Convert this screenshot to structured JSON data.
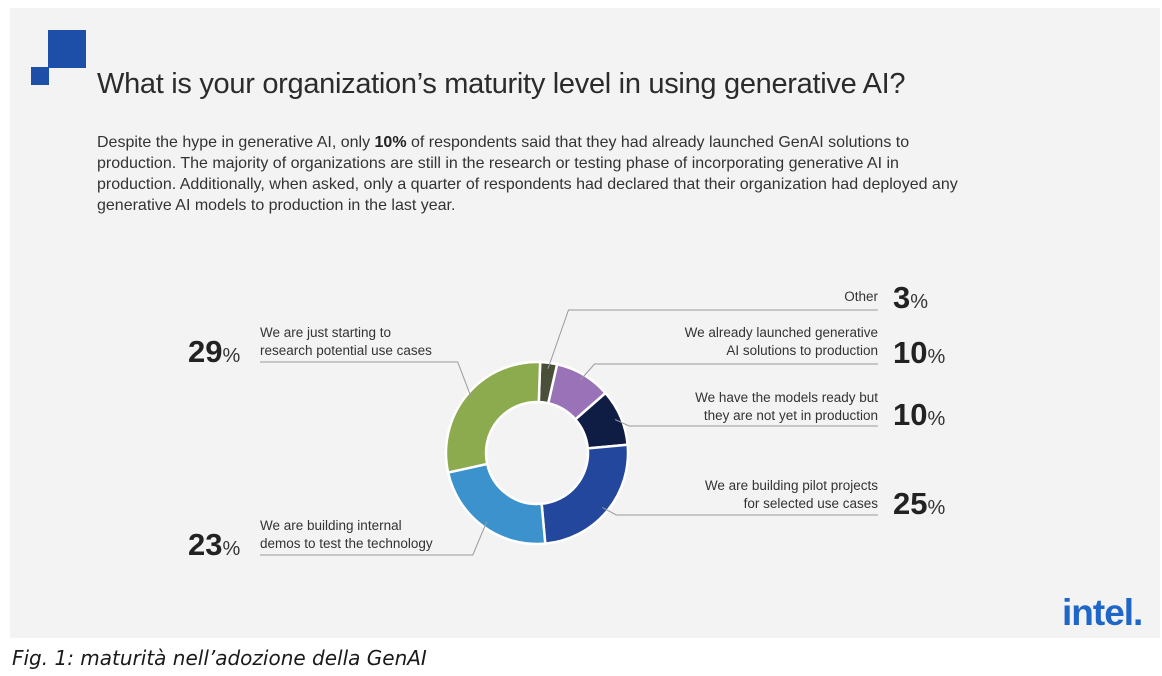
{
  "header": {
    "title": "What is your organization’s maturity level in using generative AI?"
  },
  "intro": {
    "before_bold": "Despite the hype in generative AI, only ",
    "bold": "10%",
    "after_bold": " of respondents said that they had already launched GenAI solutions to production. The majority of organizations are still in the research or testing phase of incorporating generative AI in production. Additionally, when asked, only a quarter of respondents had declared that their organization had deployed any generative AI models to production in the last year."
  },
  "chart_data": {
    "type": "pie",
    "donut": true,
    "slices": [
      {
        "label_lines": [
          "Other"
        ],
        "value": 3,
        "color": "#4a4f3a"
      },
      {
        "label_lines": [
          "We already launched generative",
          "AI solutions to production"
        ],
        "value": 10,
        "color": "#9a72b8"
      },
      {
        "label_lines": [
          "We have the models ready but",
          "they are not yet in production"
        ],
        "value": 10,
        "color": "#0f1d45"
      },
      {
        "label_lines": [
          "We are building pilot projects",
          "for selected use cases"
        ],
        "value": 25,
        "color": "#24479e"
      },
      {
        "label_lines": [
          "We are building internal",
          "demos to test the technology"
        ],
        "value": 23,
        "color": "#3b92cc"
      },
      {
        "label_lines": [
          "We are just starting to",
          "research potential use cases"
        ],
        "value": 29,
        "color": "#8caa4e"
      }
    ],
    "percent_suffix": "%"
  },
  "brand": {
    "logo_text": "intel.",
    "accent": "#1e4fa8"
  },
  "caption": {
    "text": "Fig. 1:  maturità nell’adozione della GenAI"
  }
}
